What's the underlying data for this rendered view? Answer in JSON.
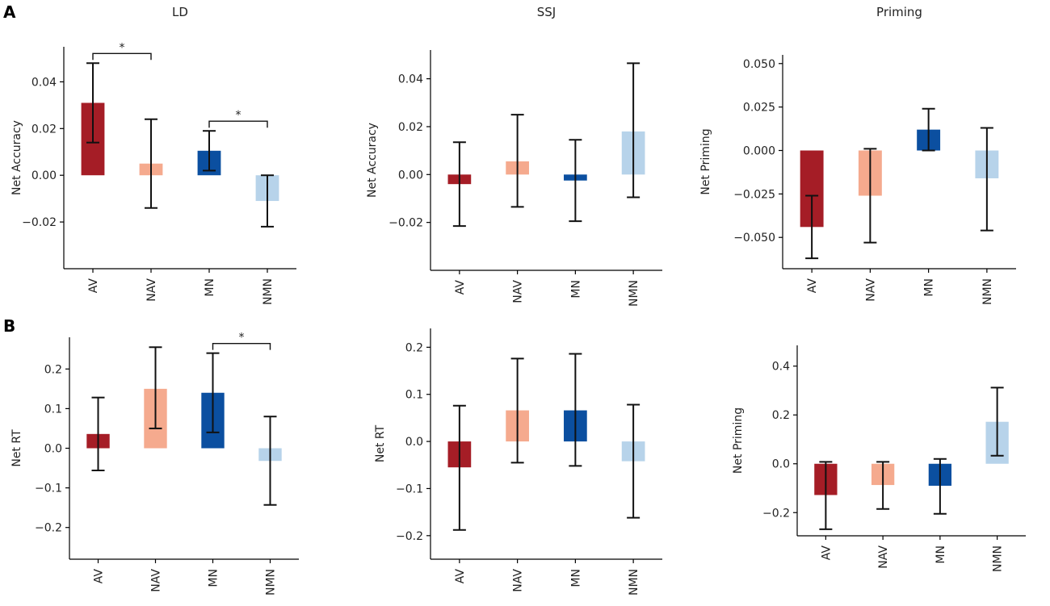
{
  "panel_letters": [
    "A",
    "B"
  ],
  "chart_data": [
    {
      "type": "bar",
      "panel": "A",
      "title": "LD",
      "xlabel": "",
      "ylabel": "Net Accuracy",
      "categories": [
        "AV",
        "NAV",
        "MN",
        "NMN"
      ],
      "values": [
        0.031,
        0.005,
        0.0105,
        -0.011
      ],
      "err_low": [
        0.014,
        -0.014,
        0.002,
        -0.022
      ],
      "err_high": [
        0.048,
        0.024,
        0.019,
        0.0
      ],
      "colors": [
        "#a51d26",
        "#f5aa8e",
        "#0b4fa0",
        "#b7d3ea"
      ],
      "ylim": [
        -0.04,
        0.055
      ],
      "yticks": [
        -0.02,
        0.0,
        0.02,
        0.04
      ],
      "ytick_labels": [
        "−0.02",
        "0.00",
        "0.02",
        "0.04"
      ],
      "significance": [
        {
          "from": 0,
          "to": 1,
          "label": "*"
        },
        {
          "from": 2,
          "to": 3,
          "label": "*"
        }
      ]
    },
    {
      "type": "bar",
      "panel": "A",
      "title": "SSJ",
      "xlabel": "",
      "ylabel": "Net Accuracy",
      "categories": [
        "AV",
        "NAV",
        "MN",
        "NMN"
      ],
      "values": [
        -0.004,
        0.0055,
        -0.0025,
        0.018
      ],
      "err_low": [
        -0.0215,
        -0.0135,
        -0.0195,
        -0.0095
      ],
      "err_high": [
        0.0135,
        0.025,
        0.0145,
        0.0465
      ],
      "colors": [
        "#a51d26",
        "#f5aa8e",
        "#0b4fa0",
        "#b7d3ea"
      ],
      "ylim": [
        -0.04,
        0.052
      ],
      "yticks": [
        -0.02,
        0.0,
        0.02,
        0.04
      ],
      "ytick_labels": [
        "−0.02",
        "0.00",
        "0.02",
        "0.04"
      ],
      "significance": []
    },
    {
      "type": "bar",
      "panel": "A",
      "title": "Priming",
      "xlabel": "",
      "ylabel": "Net Priming",
      "categories": [
        "AV",
        "NAV",
        "MN",
        "NMN"
      ],
      "values": [
        -0.044,
        -0.026,
        0.012,
        -0.016
      ],
      "err_low": [
        -0.062,
        -0.053,
        0.0,
        -0.046
      ],
      "err_high": [
        -0.026,
        0.001,
        0.024,
        0.013
      ],
      "colors": [
        "#a51d26",
        "#f5aa8e",
        "#0b4fa0",
        "#b7d3ea"
      ],
      "ylim": [
        -0.068,
        0.055
      ],
      "yticks": [
        -0.05,
        -0.025,
        0.0,
        0.025,
        0.05
      ],
      "ytick_labels": [
        "−0.050",
        "−0.025",
        "0.000",
        "0.025",
        "0.050"
      ],
      "significance": []
    },
    {
      "type": "bar",
      "panel": "B",
      "title": "",
      "xlabel": "",
      "ylabel": "Net RT",
      "categories": [
        "AV",
        "NAV",
        "MN",
        "NMN"
      ],
      "values": [
        0.036,
        0.15,
        0.14,
        -0.032
      ],
      "err_low": [
        -0.056,
        0.05,
        0.04,
        -0.143
      ],
      "err_high": [
        0.128,
        0.255,
        0.24,
        0.08
      ],
      "colors": [
        "#a51d26",
        "#f5aa8e",
        "#0b4fa0",
        "#b7d3ea"
      ],
      "ylim": [
        -0.28,
        0.28
      ],
      "yticks": [
        -0.2,
        -0.1,
        0.0,
        0.1,
        0.2
      ],
      "ytick_labels": [
        "−0.2",
        "−0.1",
        "0.0",
        "0.1",
        "0.2"
      ],
      "significance": [
        {
          "from": 2,
          "to": 3,
          "label": "*"
        }
      ]
    },
    {
      "type": "bar",
      "panel": "B",
      "title": "",
      "xlabel": "",
      "ylabel": "Net RT",
      "categories": [
        "AV",
        "NAV",
        "MN",
        "NMN"
      ],
      "values": [
        -0.055,
        0.066,
        0.066,
        -0.042
      ],
      "err_low": [
        -0.188,
        -0.045,
        -0.052,
        -0.162
      ],
      "err_high": [
        0.076,
        0.176,
        0.186,
        0.078
      ],
      "colors": [
        "#a51d26",
        "#f5aa8e",
        "#0b4fa0",
        "#b7d3ea"
      ],
      "ylim": [
        -0.25,
        0.24
      ],
      "yticks": [
        -0.2,
        -0.1,
        0.0,
        0.1,
        0.2
      ],
      "ytick_labels": [
        "−0.2",
        "−0.1",
        "0.0",
        "0.1",
        "0.2"
      ],
      "significance": []
    },
    {
      "type": "bar",
      "panel": "B",
      "title": "",
      "xlabel": "",
      "ylabel": "Net Priming",
      "categories": [
        "AV",
        "NAV",
        "MN",
        "NMN"
      ],
      "values": [
        -0.128,
        -0.087,
        -0.09,
        0.172
      ],
      "err_low": [
        -0.268,
        -0.185,
        -0.205,
        0.033
      ],
      "err_high": [
        0.008,
        0.008,
        0.02,
        0.312
      ],
      "colors": [
        "#a51d26",
        "#f5aa8e",
        "#0b4fa0",
        "#b7d3ea"
      ],
      "ylim": [
        -0.295,
        0.485
      ],
      "yticks": [
        -0.2,
        0.0,
        0.2,
        0.4
      ],
      "ytick_labels": [
        "−0.2",
        "0.0",
        "0.2",
        "0.4"
      ],
      "significance": []
    }
  ]
}
